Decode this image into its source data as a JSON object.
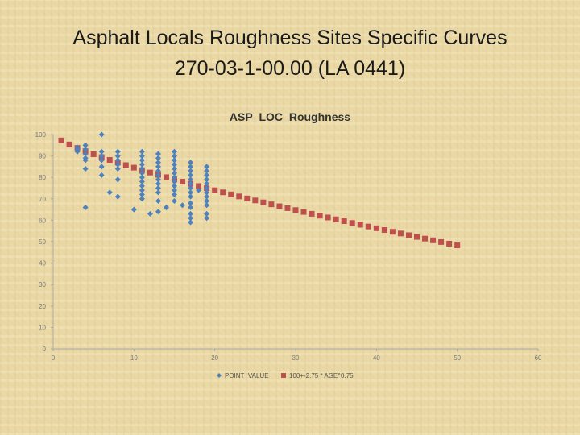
{
  "slide": {
    "title_line1": "Asphalt Locals Roughness Sites Specific Curves",
    "title_line2": "270-03-1-00.00 (LA 0441)"
  },
  "colors": {
    "point": "#4f81bd",
    "curve": "#c0504d",
    "axis": "#aaaaaa"
  },
  "chart_data": {
    "type": "scatter",
    "title": "ASP_LOC_Roughness",
    "xlabel": "",
    "ylabel": "",
    "xlim": [
      0,
      60
    ],
    "ylim": [
      0,
      100
    ],
    "xticks": [
      "0",
      "10",
      "20",
      "30",
      "40",
      "50",
      "60"
    ],
    "yticks": [
      "0",
      "10",
      "20",
      "30",
      "40",
      "50",
      "60",
      "70",
      "80",
      "90",
      "100"
    ],
    "grid": false,
    "legend_position": "bottom",
    "series": [
      {
        "name": "POINT_VALUE",
        "marker": "diamond",
        "points": [
          [
            3,
            93
          ],
          [
            3,
            92
          ],
          [
            3,
            94
          ],
          [
            4,
            95
          ],
          [
            4,
            93
          ],
          [
            4,
            91
          ],
          [
            4,
            89
          ],
          [
            4,
            88
          ],
          [
            4,
            84
          ],
          [
            4,
            66
          ],
          [
            6,
            100
          ],
          [
            6,
            92
          ],
          [
            6,
            90
          ],
          [
            6,
            88
          ],
          [
            6,
            85
          ],
          [
            6,
            81
          ],
          [
            7,
            73
          ],
          [
            8,
            92
          ],
          [
            8,
            90
          ],
          [
            8,
            88
          ],
          [
            8,
            86
          ],
          [
            8,
            84
          ],
          [
            8,
            79
          ],
          [
            8,
            71
          ],
          [
            10,
            65
          ],
          [
            11,
            92
          ],
          [
            11,
            90
          ],
          [
            11,
            88
          ],
          [
            11,
            86
          ],
          [
            11,
            84
          ],
          [
            11,
            82
          ],
          [
            11,
            80
          ],
          [
            11,
            78
          ],
          [
            11,
            76
          ],
          [
            11,
            74
          ],
          [
            11,
            72
          ],
          [
            11,
            70
          ],
          [
            12,
            63
          ],
          [
            13,
            91
          ],
          [
            13,
            89
          ],
          [
            13,
            87
          ],
          [
            13,
            85
          ],
          [
            13,
            83
          ],
          [
            13,
            81
          ],
          [
            13,
            79
          ],
          [
            13,
            77
          ],
          [
            13,
            75
          ],
          [
            13,
            73
          ],
          [
            13,
            69
          ],
          [
            13,
            64
          ],
          [
            14,
            66
          ],
          [
            15,
            92
          ],
          [
            15,
            90
          ],
          [
            15,
            88
          ],
          [
            15,
            86
          ],
          [
            15,
            84
          ],
          [
            15,
            82
          ],
          [
            15,
            80
          ],
          [
            15,
            78
          ],
          [
            15,
            76
          ],
          [
            15,
            74
          ],
          [
            15,
            72
          ],
          [
            15,
            69
          ],
          [
            16,
            67
          ],
          [
            17,
            87
          ],
          [
            17,
            85
          ],
          [
            17,
            83
          ],
          [
            17,
            81
          ],
          [
            17,
            79
          ],
          [
            17,
            77
          ],
          [
            17,
            75
          ],
          [
            17,
            73
          ],
          [
            17,
            71
          ],
          [
            17,
            68
          ],
          [
            17,
            66
          ],
          [
            17,
            63
          ],
          [
            17,
            61
          ],
          [
            17,
            59
          ],
          [
            18,
            74
          ],
          [
            19,
            85
          ],
          [
            19,
            83
          ],
          [
            19,
            81
          ],
          [
            19,
            79
          ],
          [
            19,
            77
          ],
          [
            19,
            75
          ],
          [
            19,
            73
          ],
          [
            19,
            71
          ],
          [
            19,
            69
          ],
          [
            19,
            67
          ],
          [
            19,
            63
          ],
          [
            19,
            61
          ]
        ]
      },
      {
        "name": "100+-2.75 * AGE^0.75",
        "marker": "square",
        "x": [
          1,
          2,
          3,
          4,
          5,
          6,
          7,
          8,
          9,
          10,
          11,
          12,
          13,
          14,
          15,
          16,
          17,
          18,
          19,
          20,
          21,
          22,
          23,
          24,
          25,
          26,
          27,
          28,
          29,
          30,
          31,
          32,
          33,
          34,
          35,
          36,
          37,
          38,
          39,
          40,
          41,
          42,
          43,
          44,
          45,
          46,
          47,
          48,
          49,
          50
        ]
      }
    ]
  }
}
